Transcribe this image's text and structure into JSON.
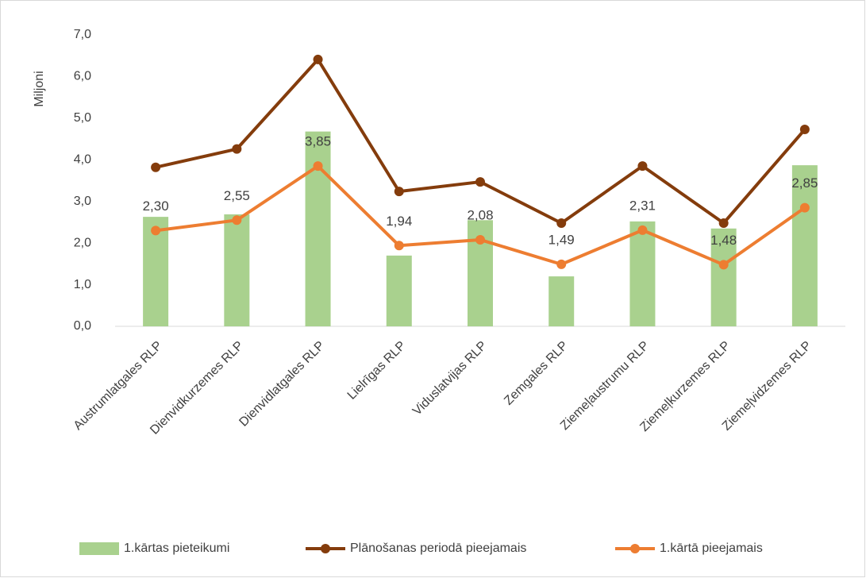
{
  "chart_data": {
    "type": "combo",
    "y_axis_label": "Miljoni",
    "categories": [
      "Austrumlatgales RLP",
      "Dienvidkurzemes RLP",
      "Dienvidlatgales RLP",
      "Lielrīgas RLP",
      "Viduslatvijas RLP",
      "Zemgales RLP",
      "Ziemeļaustrumu RLP",
      "Ziemeļkurzemes RLP",
      "Ziemeļvidzemes RLP"
    ],
    "series": [
      {
        "name": "1.kārtas pieteikumi",
        "type": "bar",
        "color": "#a9d18e",
        "values": [
          2.63,
          2.69,
          4.68,
          1.7,
          2.55,
          1.2,
          2.52,
          2.35,
          3.87
        ]
      },
      {
        "name": "Plānošanas periodā pieejamais",
        "type": "line",
        "color": "#843c0c",
        "values": [
          3.82,
          4.26,
          6.41,
          3.24,
          3.47,
          2.48,
          3.85,
          2.48,
          4.73
        ]
      },
      {
        "name": "1.kārtā pieejamais",
        "type": "line",
        "color": "#ed7d31",
        "values": [
          2.3,
          2.55,
          3.85,
          1.94,
          2.08,
          1.49,
          2.31,
          1.48,
          2.85
        ],
        "value_labels": [
          "2,30",
          "2,55",
          "3,85",
          "1,94",
          "2,08",
          "1,49",
          "2,31",
          "1,48",
          "2,85"
        ]
      }
    ],
    "ylim": [
      0,
      7
    ],
    "yticks": [
      {
        "value": 0,
        "label": "0,0"
      },
      {
        "value": 1,
        "label": "1,0"
      },
      {
        "value": 2,
        "label": "2,0"
      },
      {
        "value": 3,
        "label": "3,0"
      },
      {
        "value": 4,
        "label": "4,0"
      },
      {
        "value": 5,
        "label": "5,0"
      },
      {
        "value": 6,
        "label": "6,0"
      },
      {
        "value": 7,
        "label": "7,0"
      }
    ],
    "grid": false,
    "legend": "bottom"
  }
}
